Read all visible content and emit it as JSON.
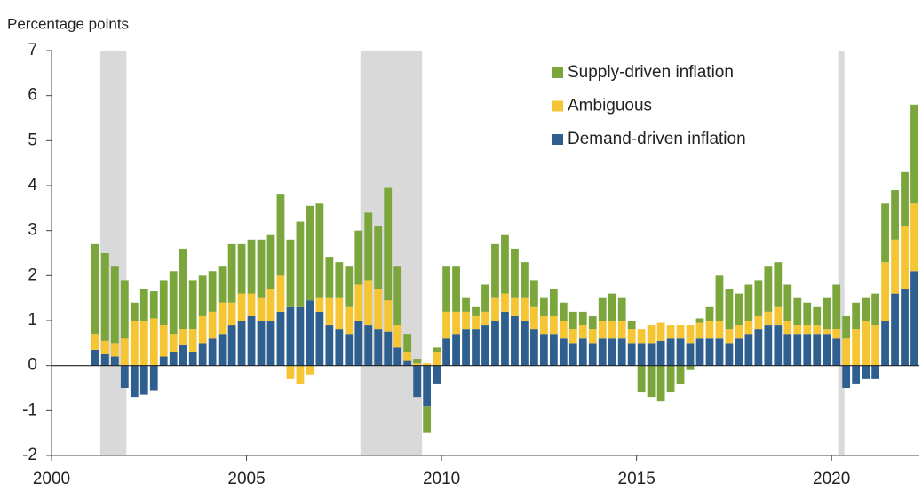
{
  "chart_data": {
    "type": "stacked_bar",
    "ylabel": "Percentage points",
    "xlim": [
      2000,
      2022.25
    ],
    "xticks": [
      2000,
      2005,
      2010,
      2015,
      2020
    ],
    "ylim": [
      -2,
      7
    ],
    "yticks": [
      -2,
      -1,
      0,
      1,
      2,
      3,
      4,
      5,
      6,
      7
    ],
    "recessions": [
      [
        2001.25,
        2001.92
      ],
      [
        2007.92,
        2009.5
      ],
      [
        2020.17,
        2020.33
      ]
    ],
    "legend": "upper-right",
    "x": [
      2001.0,
      2001.25,
      2001.5,
      2001.75,
      2002.0,
      2002.25,
      2002.5,
      2002.75,
      2003.0,
      2003.25,
      2003.5,
      2003.75,
      2004.0,
      2004.25,
      2004.5,
      2004.75,
      2005.0,
      2005.25,
      2005.5,
      2005.75,
      2006.0,
      2006.25,
      2006.5,
      2006.75,
      2007.0,
      2007.25,
      2007.5,
      2007.75,
      2008.0,
      2008.25,
      2008.5,
      2008.75,
      2009.0,
      2009.25,
      2009.5,
      2009.75,
      2010.0,
      2010.25,
      2010.5,
      2010.75,
      2011.0,
      2011.25,
      2011.5,
      2011.75,
      2012.0,
      2012.25,
      2012.5,
      2012.75,
      2013.0,
      2013.25,
      2013.5,
      2013.75,
      2014.0,
      2014.25,
      2014.5,
      2014.75,
      2015.0,
      2015.25,
      2015.5,
      2015.75,
      2016.0,
      2016.25,
      2016.5,
      2016.75,
      2017.0,
      2017.25,
      2017.5,
      2017.75,
      2018.0,
      2018.25,
      2018.5,
      2018.75,
      2019.0,
      2019.25,
      2019.5,
      2019.75,
      2020.0,
      2020.25,
      2020.5,
      2020.75,
      2021.0,
      2021.25,
      2021.5,
      2021.75,
      2022.0
    ],
    "series": [
      {
        "name": "Demand-driven inflation",
        "color": "#2e5f8f",
        "values": [
          0.35,
          0.25,
          0.2,
          -0.5,
          -0.7,
          -0.65,
          -0.55,
          0.2,
          0.3,
          0.45,
          0.3,
          0.5,
          0.6,
          0.7,
          0.9,
          1.0,
          1.1,
          1.0,
          1.0,
          1.2,
          1.3,
          1.3,
          1.45,
          1.2,
          0.9,
          0.8,
          0.7,
          1.0,
          0.9,
          0.8,
          0.75,
          0.4,
          0.1,
          -0.7,
          -0.9,
          -0.4,
          0.6,
          0.7,
          0.8,
          0.8,
          0.9,
          1.0,
          1.2,
          1.1,
          1.0,
          0.8,
          0.7,
          0.7,
          0.6,
          0.5,
          0.6,
          0.5,
          0.6,
          0.6,
          0.6,
          0.5,
          0.5,
          0.5,
          0.55,
          0.6,
          0.6,
          0.5,
          0.6,
          0.6,
          0.6,
          0.5,
          0.6,
          0.7,
          0.8,
          0.9,
          0.9,
          0.7,
          0.7,
          0.7,
          0.7,
          0.7,
          0.6,
          -0.5,
          -0.4,
          -0.3,
          -0.3,
          1.0,
          1.6,
          1.7,
          2.1
        ]
      },
      {
        "name": "Ambiguous",
        "color": "#f5c533",
        "values": [
          0.35,
          0.3,
          0.3,
          0.6,
          1.0,
          1.0,
          1.05,
          0.7,
          0.4,
          0.35,
          0.5,
          0.6,
          0.6,
          0.7,
          0.5,
          0.6,
          0.5,
          0.5,
          0.7,
          0.8,
          -0.3,
          -0.4,
          -0.2,
          0.3,
          0.6,
          0.7,
          0.6,
          0.8,
          1.0,
          0.9,
          0.7,
          0.5,
          0.2,
          0.05,
          0.05,
          0.3,
          0.6,
          0.5,
          0.4,
          0.3,
          0.3,
          0.5,
          0.4,
          0.4,
          0.5,
          0.5,
          0.4,
          0.4,
          0.4,
          0.3,
          0.3,
          0.3,
          0.4,
          0.4,
          0.4,
          0.3,
          0.3,
          0.4,
          0.4,
          0.3,
          0.3,
          0.4,
          0.35,
          0.4,
          0.4,
          0.3,
          0.3,
          0.3,
          0.3,
          0.3,
          0.4,
          0.3,
          0.2,
          0.2,
          0.2,
          0.1,
          0.2,
          0.6,
          0.8,
          1.0,
          0.9,
          1.3,
          1.2,
          1.4,
          1.5
        ]
      },
      {
        "name": "Supply-driven inflation",
        "color": "#7aa63c",
        "values": [
          2.0,
          1.95,
          1.7,
          1.3,
          0.4,
          0.7,
          0.6,
          1.0,
          1.4,
          1.8,
          1.1,
          0.9,
          0.9,
          0.8,
          1.3,
          1.1,
          1.2,
          1.3,
          1.2,
          1.8,
          1.5,
          1.9,
          2.1,
          2.1,
          0.9,
          0.8,
          0.9,
          1.2,
          1.5,
          1.4,
          2.5,
          1.3,
          0.4,
          0.1,
          -0.6,
          0.1,
          1.0,
          1.0,
          0.3,
          0.2,
          0.6,
          1.2,
          1.3,
          1.1,
          0.8,
          0.6,
          0.4,
          0.6,
          0.4,
          0.4,
          0.3,
          0.3,
          0.5,
          0.6,
          0.5,
          0.2,
          -0.6,
          -0.7,
          -0.8,
          -0.6,
          -0.4,
          -0.1,
          0.1,
          0.3,
          1.0,
          0.9,
          0.7,
          0.8,
          0.8,
          1.0,
          1.0,
          0.8,
          0.6,
          0.5,
          0.4,
          0.7,
          1.0,
          0.5,
          0.6,
          0.5,
          0.7,
          1.3,
          1.1,
          1.2,
          2.2
        ]
      }
    ]
  }
}
